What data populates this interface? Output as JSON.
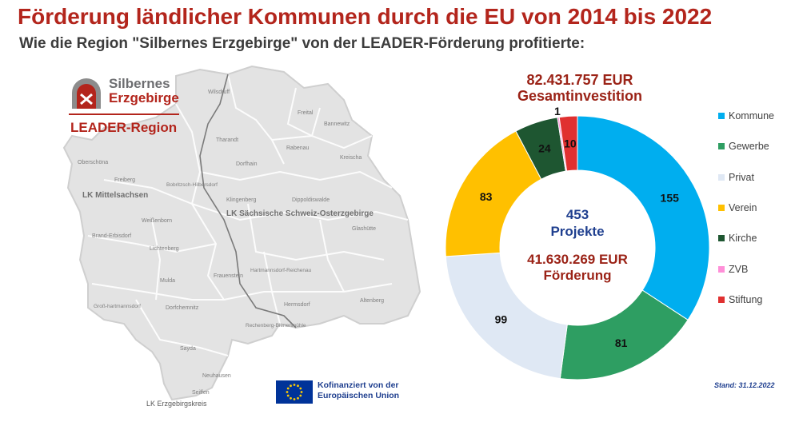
{
  "title": "Förderung ländlicher Kommunen durch die EU von 2014 bis 2022",
  "subtitle": "Wie die Region \"Silbernes Erzgebirge\" von der LEADER-Förderung profitierte:",
  "logo": {
    "line1": "Silbernes",
    "line2": "Erzgebirge",
    "region": "LEADER-Region"
  },
  "map": {
    "districts": [
      "LK Mittelsachsen",
      "LK Sächsische Schweiz-Osterzgebirge",
      "LK Erzgebirgskreis"
    ],
    "places": [
      "Wilsdruff",
      "Freital",
      "Bannewitz",
      "Oberschöna",
      "Tharandt",
      "Rabenau",
      "Kreischa",
      "Dorfhain",
      "Freiberg",
      "Bobritzsch-Hilbersdorf",
      "Klingenberg",
      "Dippoldiswalde",
      "Weißenborn",
      "Glashütte",
      "Brand-Erbisdorf",
      "Lichtenberg",
      "Frauenstein",
      "Mulda",
      "Hartmannsdorf-Reichenau",
      "Groß-hartmannsdorf",
      "Dorfchemnitz",
      "Hermsdorf",
      "Altenberg",
      "Rechenberg-Bienenmühle",
      "Sayda",
      "Neuhausen",
      "Seiffen"
    ]
  },
  "eu": {
    "line1": "Kofinanziert von der",
    "line2": "Europäischen Union"
  },
  "stand": "Stand: 31.12.2022",
  "chart_data": {
    "type": "pie",
    "variant": "donut",
    "title": "82.431.757 EUR Gesamtinvestition",
    "title_line1": "82.431.757 EUR",
    "title_line2": "Gesamtinvestition",
    "center_projects_line1": "453",
    "center_projects_line2": "Projekte",
    "center_funding_line1": "41.630.269 EUR",
    "center_funding_line2": "Förderung",
    "total_projects": 453,
    "categories": [
      "Kommune",
      "Gewerbe",
      "Privat",
      "Verein",
      "Kirche",
      "ZVB",
      "Stiftung"
    ],
    "values": [
      155,
      81,
      99,
      83,
      24,
      1,
      10
    ],
    "colors": [
      "#00aeef",
      "#2e9e62",
      "#dfe8f4",
      "#ffc000",
      "#1e5631",
      "#ff8fd8",
      "#e03030"
    ],
    "legend_position": "right"
  }
}
